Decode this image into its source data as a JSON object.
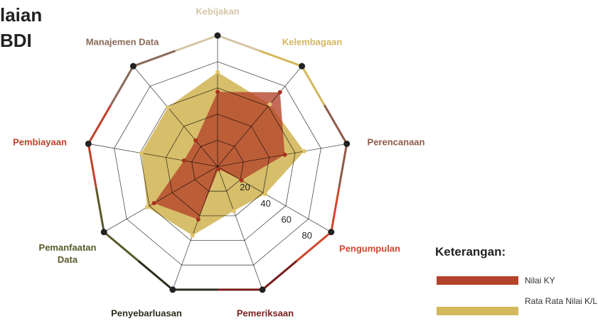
{
  "chart_data": {
    "type": "radar",
    "title_lines": [
      "laian",
      "BDI"
    ],
    "categories": [
      "Kebijakan",
      "Kelembagaan",
      "Perencanaan",
      "Pengumpulan",
      "Pemeriksaan",
      "Penyebarluasan",
      "Pemanfaatan Data",
      "Pembiayaan",
      "Manajemen Data"
    ],
    "category_colors": [
      "#d6c6a6",
      "#d4b85a",
      "#8e5b48",
      "#d0472c",
      "#7a1c1c",
      "#2c2c1c",
      "#5a5a2c",
      "#c0402a",
      "#8b6a5a"
    ],
    "series": [
      {
        "name": "Rata Rata Nilai K/L",
        "color": "#d4b85e",
        "values": [
          72,
          62,
          67,
          42,
          36,
          56,
          62,
          59,
          59
        ]
      },
      {
        "name": "Nilai KY",
        "color": "#b3432a",
        "values": [
          57,
          74,
          52,
          21,
          2,
          43,
          56,
          26,
          26
        ]
      }
    ],
    "ylim": [
      0,
      100
    ],
    "yticks": [
      20,
      40,
      60,
      80
    ],
    "legend_title": "Keterangan:"
  }
}
